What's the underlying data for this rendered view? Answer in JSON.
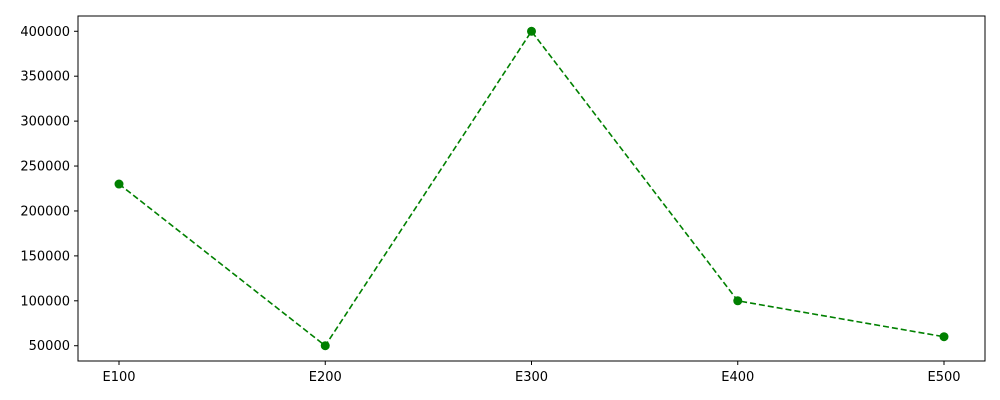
{
  "chart_data": {
    "type": "line",
    "title": "",
    "xlabel": "",
    "ylabel": "",
    "categories": [
      "E100",
      "E200",
      "E300",
      "E400",
      "E500"
    ],
    "series": [
      {
        "values": [
          230000,
          50000,
          400000,
          100000,
          60000
        ],
        "color": "#008000",
        "line_style": "dashed",
        "marker": "circle"
      }
    ],
    "ylim": [
      33000,
      417000
    ],
    "yticks": [
      50000,
      100000,
      150000,
      200000,
      250000,
      300000,
      350000,
      400000
    ],
    "ytick_labels": [
      "50000",
      "100000",
      "150000",
      "200000",
      "250000",
      "300000",
      "350000",
      "400000"
    ],
    "grid": false,
    "legend": "none"
  }
}
